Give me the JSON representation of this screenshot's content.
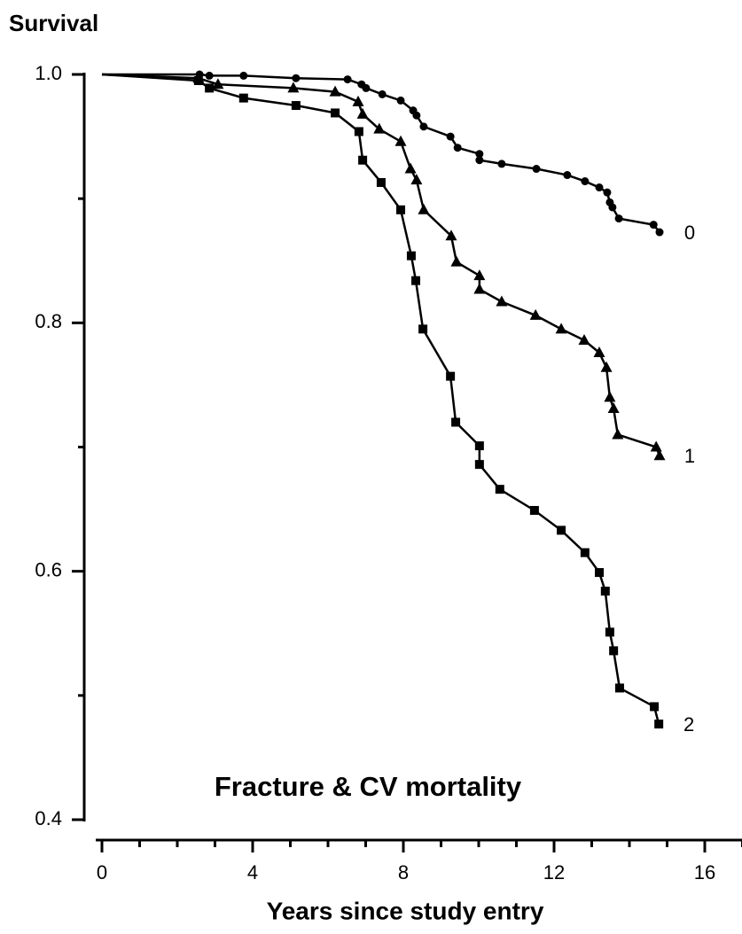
{
  "chart_data": {
    "type": "line",
    "title": "Survival",
    "annotation": "Fracture & CV mortality",
    "x_label": "Years since study entry",
    "xlim": [
      0,
      16
    ],
    "ylim": [
      0.4,
      1.0
    ],
    "xticks": [
      0,
      4,
      8,
      12,
      16
    ],
    "xminor": [
      1,
      2,
      3,
      5,
      6,
      7,
      9,
      10,
      11,
      13,
      14,
      15,
      17
    ],
    "yticks": [
      {
        "value": 0.4,
        "label": "0.4"
      },
      {
        "value": 0.6,
        "label": "0.6"
      },
      {
        "value": 0.8,
        "label": "0.8"
      },
      {
        "value": 1.0,
        "label": "1.0"
      }
    ],
    "yminor": [
      0.5,
      0.7,
      0.9
    ],
    "series": [
      {
        "name": "0",
        "color": "#000000",
        "marker": "circle",
        "x": [
          0,
          2.59,
          2.85,
          3.76,
          5.15,
          6.52,
          6.89,
          7.01,
          7.44,
          7.93,
          8.26,
          8.35,
          8.54,
          9.25,
          9.44,
          10.02,
          10.02,
          10.61,
          11.53,
          12.35,
          12.82,
          13.2,
          13.41,
          13.48,
          13.55,
          13.72,
          14.64,
          14.8
        ],
        "values": [
          1.0,
          1.0,
          0.999,
          0.999,
          0.997,
          0.996,
          0.992,
          0.989,
          0.984,
          0.979,
          0.971,
          0.967,
          0.958,
          0.95,
          0.941,
          0.936,
          0.931,
          0.928,
          0.924,
          0.919,
          0.914,
          0.909,
          0.905,
          0.897,
          0.893,
          0.884,
          0.879,
          0.873
        ]
      },
      {
        "name": "1",
        "color": "#000000",
        "marker": "triangle",
        "x": [
          0,
          2.56,
          3.08,
          5.08,
          6.19,
          6.8,
          6.92,
          7.36,
          7.93,
          8.19,
          8.35,
          8.54,
          9.27,
          9.41,
          10.02,
          10.02,
          10.61,
          11.51,
          12.19,
          12.8,
          13.2,
          13.39,
          13.48,
          13.58,
          13.69,
          14.71,
          14.8
        ],
        "values": [
          1.0,
          0.997,
          0.992,
          0.989,
          0.986,
          0.978,
          0.968,
          0.956,
          0.946,
          0.924,
          0.915,
          0.891,
          0.87,
          0.849,
          0.838,
          0.827,
          0.817,
          0.806,
          0.795,
          0.786,
          0.776,
          0.764,
          0.74,
          0.731,
          0.71,
          0.7,
          0.693
        ]
      },
      {
        "name": "2",
        "color": "#000000",
        "marker": "square",
        "x": [
          0,
          2.56,
          2.85,
          3.76,
          5.15,
          6.19,
          6.82,
          6.92,
          7.41,
          7.93,
          8.21,
          8.33,
          8.52,
          9.25,
          9.39,
          10.02,
          10.02,
          10.56,
          11.48,
          12.19,
          12.82,
          13.2,
          13.36,
          13.48,
          13.58,
          13.74,
          14.66,
          14.78
        ],
        "values": [
          1.0,
          0.995,
          0.989,
          0.981,
          0.975,
          0.969,
          0.954,
          0.931,
          0.913,
          0.891,
          0.854,
          0.834,
          0.795,
          0.757,
          0.72,
          0.701,
          0.686,
          0.666,
          0.649,
          0.633,
          0.615,
          0.599,
          0.584,
          0.551,
          0.536,
          0.506,
          0.491,
          0.477
        ]
      }
    ]
  }
}
